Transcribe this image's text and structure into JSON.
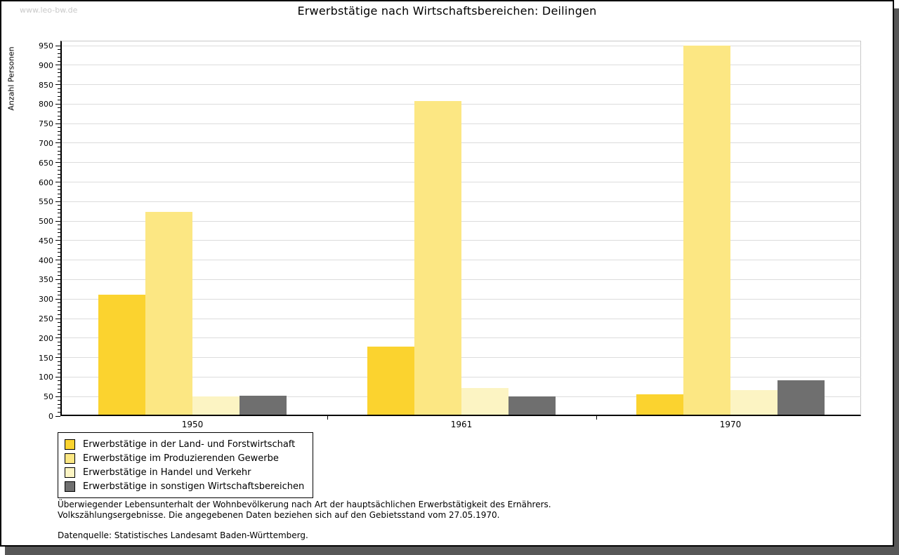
{
  "watermark": "www.leo-bw.de",
  "title": "Erwerbstätige nach Wirtschaftsbereichen: Deilingen",
  "chart_data": {
    "type": "bar",
    "title": "Erwerbstätige nach Wirtschaftsbereichen: Deilingen",
    "xlabel": "",
    "ylabel": "Anzahl Personen",
    "categories": [
      "1950",
      "1961",
      "1970"
    ],
    "series": [
      {
        "name": "Erwerbstätige in der Land- und Forstwirtschaft",
        "color": "#FBD32F",
        "values": [
          308,
          175,
          52
        ]
      },
      {
        "name": "Erwerbstätige im Produzierenden Gewerbe",
        "color": "#FCE783",
        "values": [
          520,
          805,
          946
        ]
      },
      {
        "name": "Erwerbstätige in Handel und Verkehr",
        "color": "#FCF4C3",
        "values": [
          46,
          68,
          63
        ]
      },
      {
        "name": "Erwerbstätige in sonstigen Wirtschaftsbereichen",
        "color": "#6F6F6F",
        "values": [
          48,
          46,
          88
        ]
      }
    ],
    "ylim": [
      0,
      950
    ],
    "ytick_step": 50,
    "yminor_step": 10,
    "grid": true,
    "gridline_color": "#dcdcdc",
    "legend_position": "bottom-left"
  },
  "footnotes": {
    "line1": "Überwiegender Lebensunterhalt der Wohnbevölkerung nach Art der hauptsächlichen Erwerbstätigkeit des Ernährers.",
    "line2": "Volkszählungsergebnisse. Die angegebenen Daten beziehen sich auf den Gebietsstand vom 27.05.1970.",
    "source": "Datenquelle: Statistisches Landesamt Baden-Württemberg."
  }
}
